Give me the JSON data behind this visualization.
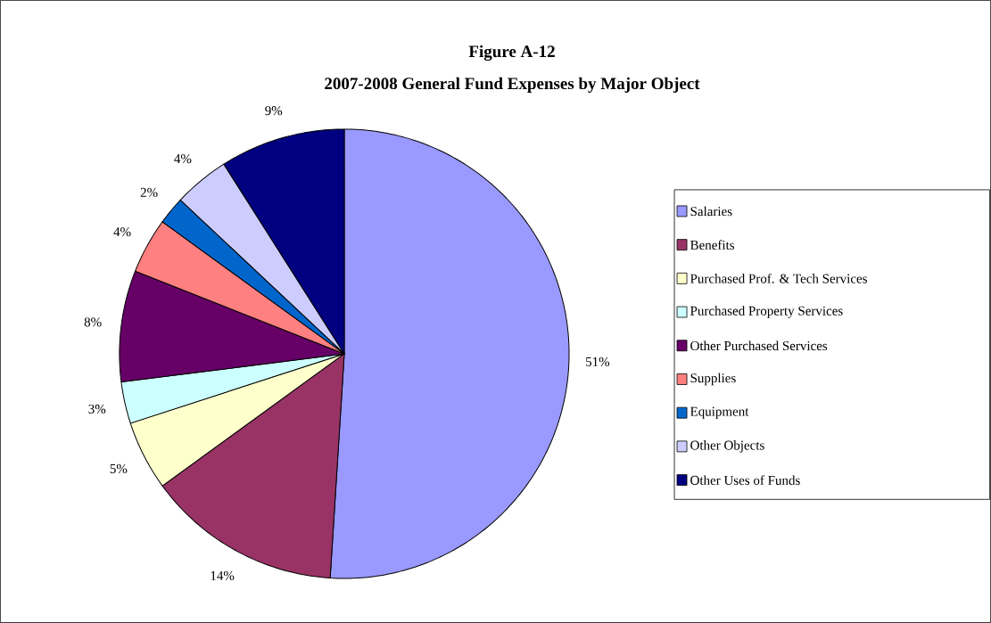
{
  "chart_data": {
    "type": "pie",
    "title": "Figure A-12",
    "subtitle": "2007-2008 General Fund Expenses by Major Object",
    "categories": [
      "Salaries",
      "Benefits",
      "Purchased Prof. & Tech Services",
      "Purchased Property Services",
      "Other Purchased Services",
      "Supplies",
      "Equipment",
      "Other Objects",
      "Other Uses of Funds"
    ],
    "values": [
      51,
      14,
      5,
      3,
      8,
      4,
      2,
      4,
      9
    ],
    "value_labels": [
      "51%",
      "14%",
      "5%",
      "3%",
      "8%",
      "4%",
      "2%",
      "4%",
      "9%"
    ],
    "colors": [
      "#9999ff",
      "#993366",
      "#ffffcc",
      "#ccffff",
      "#660066",
      "#ff8080",
      "#0066cc",
      "#ccccff",
      "#000080"
    ],
    "legend": "right"
  }
}
